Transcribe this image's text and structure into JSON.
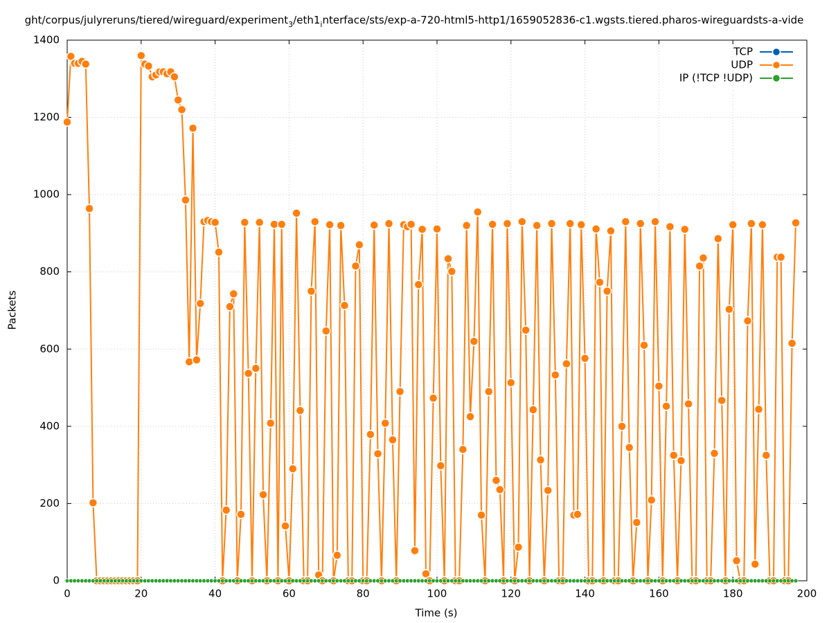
{
  "chart_data": {
    "type": "line",
    "title": [
      "ght/corpus/julyreruns/tiered/wireguard/experiment",
      "3",
      "/eth1",
      "i",
      "nterface/sts/exp-a-720-html5-http1/1659052836-c1.wgsts.tiered.pharos-wireguardsts-a-vide"
    ],
    "x_label": "Time (s)",
    "y_label": "Packets",
    "xlim": [
      0,
      200
    ],
    "xticks": [
      0,
      20,
      40,
      60,
      80,
      100,
      120,
      140,
      160,
      180,
      200
    ],
    "ylim": [
      0,
      1400
    ],
    "yticks": [
      0,
      200,
      400,
      600,
      800,
      1000,
      1200,
      1400
    ],
    "grid": true,
    "legend": "top-right",
    "x": [
      0,
      1,
      2,
      3,
      4,
      5,
      6,
      7,
      8,
      9,
      10,
      11,
      12,
      13,
      14,
      15,
      16,
      17,
      18,
      19,
      20,
      21,
      22,
      23,
      24,
      25,
      26,
      27,
      28,
      29,
      30,
      31,
      32,
      33,
      34,
      35,
      36,
      37,
      38,
      39,
      40,
      41,
      42,
      43,
      44,
      45,
      46,
      47,
      48,
      49,
      50,
      51,
      52,
      53,
      54,
      55,
      56,
      57,
      58,
      59,
      60,
      61,
      62,
      63,
      64,
      65,
      66,
      67,
      68,
      69,
      70,
      71,
      72,
      73,
      74,
      75,
      76,
      77,
      78,
      79,
      80,
      81,
      82,
      83,
      84,
      85,
      86,
      87,
      88,
      89,
      90,
      91,
      92,
      93,
      94,
      95,
      96,
      97,
      98,
      99,
      100,
      101,
      102,
      103,
      104,
      105,
      106,
      107,
      108,
      109,
      110,
      111,
      112,
      113,
      114,
      115,
      116,
      117,
      118,
      119,
      120,
      121,
      122,
      123,
      124,
      125,
      126,
      127,
      128,
      129,
      130,
      131,
      132,
      133,
      134,
      135,
      136,
      137,
      138,
      139,
      140,
      141,
      142,
      143,
      144,
      145,
      146,
      147,
      148,
      149,
      150,
      151,
      152,
      153,
      154,
      155,
      156,
      157,
      158,
      159,
      160,
      161,
      162,
      163,
      164,
      165,
      166,
      167,
      168,
      169,
      170,
      171,
      172,
      173,
      174,
      175,
      176,
      177,
      178,
      179,
      180,
      181,
      182,
      183,
      184,
      185,
      186,
      187,
      188,
      189,
      190,
      191,
      192,
      193,
      194,
      195,
      196,
      197
    ],
    "series": [
      {
        "name": "TCP",
        "color": "#0060ad",
        "values": [
          null,
          null,
          null,
          null,
          null,
          null,
          null,
          null,
          null,
          null,
          null,
          null,
          null,
          null,
          null,
          null,
          null,
          null,
          null,
          null,
          null,
          null,
          null,
          null,
          null,
          null,
          null,
          null,
          null,
          null,
          null,
          null,
          null,
          null,
          null,
          null,
          null,
          null,
          null,
          null,
          null,
          null,
          null,
          null,
          null,
          null,
          null,
          null,
          null,
          null,
          null,
          null,
          null,
          null,
          null,
          null,
          null,
          null,
          null,
          null,
          null,
          null,
          null,
          null,
          null,
          null,
          null,
          null,
          null,
          null,
          null,
          null,
          null,
          null,
          null,
          null,
          null,
          null,
          null,
          null,
          null,
          null,
          null,
          null,
          null,
          null,
          null,
          null,
          null,
          null,
          null,
          null,
          null,
          null,
          null,
          null,
          null,
          null,
          null,
          null,
          null,
          null,
          null,
          null,
          null,
          null,
          null,
          null,
          null,
          null,
          null,
          null,
          null,
          null,
          null,
          null,
          null,
          null,
          null,
          null,
          null,
          null,
          null,
          null,
          null,
          null,
          null,
          null,
          null,
          null,
          null,
          null,
          null,
          null,
          null,
          null,
          null,
          null,
          null,
          null,
          null,
          null,
          null,
          null,
          null,
          null,
          null,
          null,
          null,
          null,
          null,
          null,
          null,
          null,
          null,
          null,
          null,
          null,
          null,
          null,
          null,
          null,
          null,
          null,
          null,
          null,
          null,
          null,
          null,
          null,
          null,
          null,
          null,
          null,
          null,
          null,
          null,
          null,
          null,
          null,
          null,
          null,
          null,
          null,
          null,
          null,
          null,
          null,
          null,
          null,
          null,
          null,
          null,
          null,
          null,
          null,
          null,
          null
        ]
      },
      {
        "name": "UDP",
        "color": "#ff7f0e",
        "values": [
          1188,
          1358,
          1340,
          1340,
          1345,
          1338,
          964,
          202,
          0,
          0,
          0,
          0,
          0,
          0,
          0,
          0,
          0,
          0,
          0,
          0,
          1360,
          1338,
          1333,
          1305,
          1310,
          1318,
          1318,
          1313,
          1318,
          1305,
          1245,
          1220,
          986,
          567,
          1172,
          572,
          718,
          930,
          933,
          930,
          928,
          851,
          0,
          183,
          710,
          743,
          0,
          172,
          928,
          537,
          0,
          550,
          928,
          223,
          0,
          408,
          923,
          0,
          923,
          142,
          0,
          290,
          952,
          441,
          0,
          0,
          750,
          930,
          15,
          0,
          647,
          922,
          0,
          66,
          920,
          713,
          0,
          0,
          815,
          870,
          0,
          0,
          379,
          921,
          329,
          0,
          408,
          925,
          365,
          0,
          490,
          922,
          917,
          923,
          78,
          767,
          910,
          18,
          0,
          473,
          911,
          298,
          0,
          834,
          801,
          0,
          0,
          340,
          920,
          425,
          620,
          955,
          170,
          0,
          490,
          923,
          260,
          236,
          0,
          925,
          513,
          0,
          87,
          930,
          649,
          0,
          443,
          920,
          313,
          0,
          234,
          925,
          533,
          0,
          0,
          562,
          925,
          170,
          172,
          922,
          576,
          0,
          0,
          911,
          773,
          0,
          750,
          906,
          0,
          0,
          400,
          930,
          345,
          0,
          151,
          925,
          610,
          0,
          209,
          930,
          504,
          0,
          452,
          917,
          325,
          0,
          311,
          910,
          458,
          0,
          0,
          815,
          836,
          0,
          0,
          330,
          886,
          467,
          0,
          703,
          922,
          52,
          0,
          0,
          673,
          925,
          43,
          444,
          922,
          325,
          0,
          0,
          838,
          838,
          0,
          0,
          615,
          927
        ]
      },
      {
        "name": "IP (!TCP  !UDP)",
        "color": "#2ca02c",
        "values": [
          0,
          0,
          0,
          0,
          0,
          0,
          0,
          0,
          0,
          0,
          0,
          0,
          0,
          0,
          0,
          0,
          0,
          0,
          0,
          0,
          0,
          0,
          0,
          0,
          0,
          0,
          0,
          0,
          0,
          0,
          0,
          0,
          0,
          0,
          0,
          0,
          0,
          0,
          0,
          0,
          0,
          0,
          0,
          0,
          0,
          0,
          0,
          0,
          0,
          0,
          0,
          0,
          0,
          0,
          0,
          0,
          0,
          0,
          0,
          0,
          0,
          0,
          0,
          0,
          0,
          0,
          0,
          0,
          0,
          0,
          0,
          0,
          0,
          0,
          0,
          0,
          0,
          0,
          0,
          0,
          0,
          0,
          0,
          0,
          0,
          0,
          0,
          0,
          0,
          0,
          0,
          0,
          0,
          0,
          0,
          0,
          0,
          0,
          0,
          0,
          0,
          0,
          0,
          0,
          0,
          0,
          0,
          0,
          0,
          0,
          0,
          0,
          0,
          0,
          0,
          0,
          0,
          0,
          0,
          0,
          0,
          0,
          0,
          0,
          0,
          0,
          0,
          0,
          0,
          0,
          0,
          0,
          0,
          0,
          0,
          0,
          0,
          0,
          0,
          0,
          0,
          0,
          0,
          0,
          0,
          0,
          0,
          0,
          0,
          0,
          0,
          0,
          0,
          0,
          0,
          0,
          0,
          0,
          0,
          0,
          0,
          0,
          0,
          0,
          0,
          0,
          0,
          0,
          0,
          0,
          0,
          0,
          0,
          0,
          0,
          0,
          0,
          0,
          0,
          0,
          0,
          0,
          0,
          0,
          0,
          0,
          0,
          0,
          0,
          0,
          0,
          0,
          0,
          0,
          0,
          0,
          0,
          0
        ]
      }
    ]
  }
}
